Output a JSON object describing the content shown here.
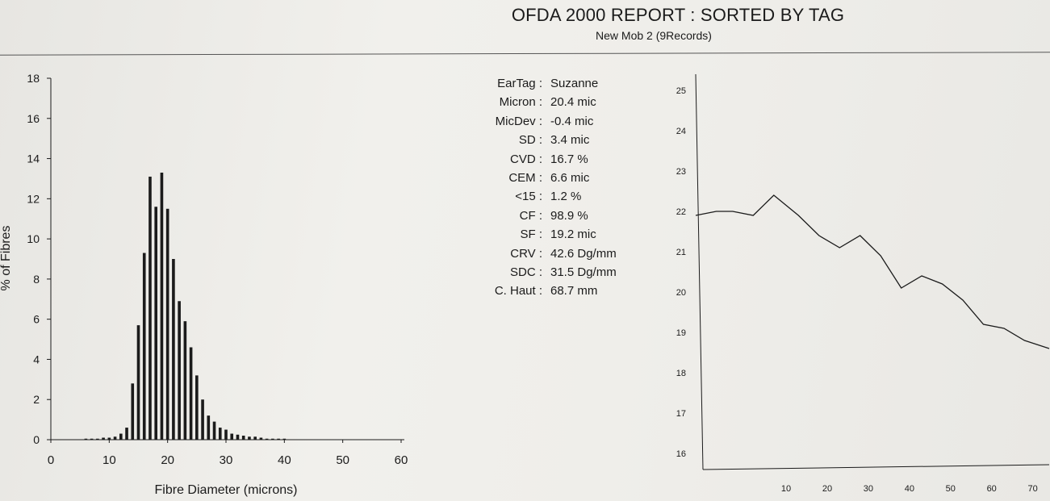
{
  "report": {
    "title": "OFDA 2000 REPORT : SORTED BY TAG",
    "subtitle": "New Mob 2 (9Records)"
  },
  "stats": [
    {
      "label": "EarTag :",
      "value": "Suzanne"
    },
    {
      "label": "Micron :",
      "value": "20.4 mic"
    },
    {
      "label": "MicDev :",
      "value": "-0.4 mic"
    },
    {
      "label": "SD :",
      "value": "3.4 mic"
    },
    {
      "label": "CVD :",
      "value": "16.7 %"
    },
    {
      "label": "CEM :",
      "value": "6.6 mic"
    },
    {
      "label": "<15 :",
      "value": "1.2 %"
    },
    {
      "label": "CF :",
      "value": "98.9 %"
    },
    {
      "label": "SF :",
      "value": "19.2 mic"
    },
    {
      "label": "CRV :",
      "value": "42.6 Dg/mm"
    },
    {
      "label": "SDC :",
      "value": "31.5 Dg/mm"
    },
    {
      "label": "C. Haut :",
      "value": "68.7 mm"
    }
  ],
  "colors": {
    "ink": "#1b1b1b",
    "paper": "#ecebe7"
  },
  "chart_data": [
    {
      "type": "bar",
      "xlabel": "Fibre Diameter (microns)",
      "ylabel": "% of Fibres",
      "xlim": [
        0,
        60
      ],
      "ylim": [
        0,
        18
      ],
      "xticks": [
        0,
        10,
        20,
        30,
        40,
        50,
        60
      ],
      "yticks": [
        0,
        2,
        4,
        6,
        8,
        10,
        12,
        14,
        16,
        18
      ],
      "x": [
        6,
        7,
        8,
        9,
        10,
        11,
        12,
        13,
        14,
        15,
        16,
        17,
        18,
        19,
        20,
        21,
        22,
        23,
        24,
        25,
        26,
        27,
        28,
        29,
        30,
        31,
        32,
        33,
        34,
        35,
        36,
        37,
        38,
        39,
        40
      ],
      "values": [
        0.05,
        0.05,
        0.05,
        0.1,
        0.1,
        0.15,
        0.3,
        0.6,
        2.8,
        5.7,
        9.3,
        13.1,
        11.6,
        13.3,
        11.5,
        9.0,
        6.9,
        5.9,
        4.6,
        3.2,
        2.0,
        1.2,
        0.9,
        0.6,
        0.5,
        0.3,
        0.25,
        0.2,
        0.15,
        0.15,
        0.1,
        0.05,
        0.05,
        0.05,
        0.05
      ]
    },
    {
      "type": "line",
      "xlim": [
        -12,
        74
      ],
      "ylim": [
        15.6,
        25.4
      ],
      "xticks": [
        10,
        20,
        30,
        40,
        50,
        60,
        70
      ],
      "yticks": [
        16,
        17,
        18,
        19,
        20,
        21,
        22,
        23,
        24,
        25
      ],
      "x": [
        -12,
        -7,
        -3,
        2,
        7,
        13,
        18,
        23,
        28,
        33,
        38,
        43,
        48,
        53,
        58,
        63,
        68,
        74
      ],
      "values": [
        21.9,
        22.0,
        22.0,
        21.9,
        22.4,
        21.9,
        21.4,
        21.1,
        21.4,
        20.9,
        20.1,
        20.4,
        20.2,
        19.8,
        19.2,
        19.1,
        18.8,
        18.6
      ]
    }
  ]
}
